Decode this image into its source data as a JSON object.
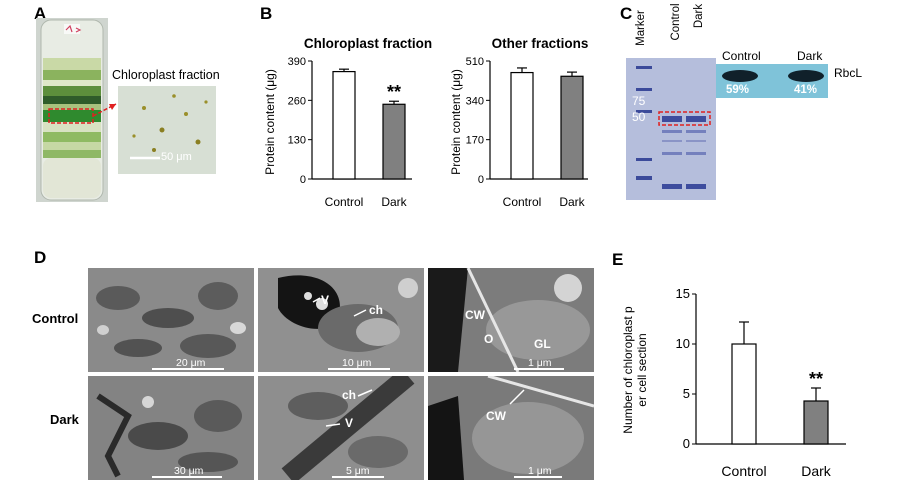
{
  "panels": {
    "a": "A",
    "b": "B",
    "c": "C",
    "d": "D",
    "e": "E"
  },
  "panel_a": {
    "inset_label": "Chloroplast fraction",
    "scale": "50 μm"
  },
  "panel_c": {
    "marker": "Marker",
    "lane_control": "Control",
    "lane_dark": "Dark",
    "mw": [
      "75",
      "50"
    ],
    "blot_control": "Control",
    "blot_dark": "Dark",
    "pct_control": "59%",
    "pct_dark": "41%",
    "protein": "RbcL"
  },
  "panel_d": {
    "row_control": "Control",
    "row_dark": "Dark",
    "scales": [
      "20 μm",
      "10 μm",
      "1 μm",
      "30 μm",
      "5 μm",
      "1 μm"
    ],
    "labels": {
      "v1": "V",
      "ch1": "ch",
      "cw1": "CW",
      "o1": "O",
      "gl1": "GL",
      "ch2": "ch",
      "v2": "V",
      "cw2": "CW"
    }
  },
  "chart_data": [
    {
      "type": "bar",
      "title": "Chloroplast fraction",
      "ylabel": "Protein content (μg)",
      "categories": [
        "Control",
        "Dark"
      ],
      "values": [
        355,
        247
      ],
      "errors": [
        8,
        10
      ],
      "ylim": [
        0,
        390
      ],
      "yticks": [
        0,
        130,
        260,
        390
      ],
      "annotations": [
        "**"
      ],
      "colors": [
        "#ffffff",
        "#808080"
      ]
    },
    {
      "type": "bar",
      "title": "Other fractions",
      "ylabel": "Protein content (μg)",
      "categories": [
        "Control",
        "Dark"
      ],
      "values": [
        460,
        444
      ],
      "errors": [
        20,
        18
      ],
      "ylim": [
        0,
        510
      ],
      "yticks": [
        0,
        170,
        340,
        510
      ],
      "annotations": [],
      "colors": [
        "#ffffff",
        "#808080"
      ]
    },
    {
      "type": "bar",
      "title": "",
      "ylabel": "Number of chloroplast per cell section",
      "categories": [
        "Control",
        "Dark"
      ],
      "values": [
        10,
        4.3
      ],
      "errors": [
        2.2,
        1.3
      ],
      "ylim": [
        0,
        15
      ],
      "yticks": [
        0,
        5,
        10,
        15
      ],
      "annotations": [
        "**"
      ],
      "colors": [
        "#ffffff",
        "#808080"
      ]
    }
  ]
}
